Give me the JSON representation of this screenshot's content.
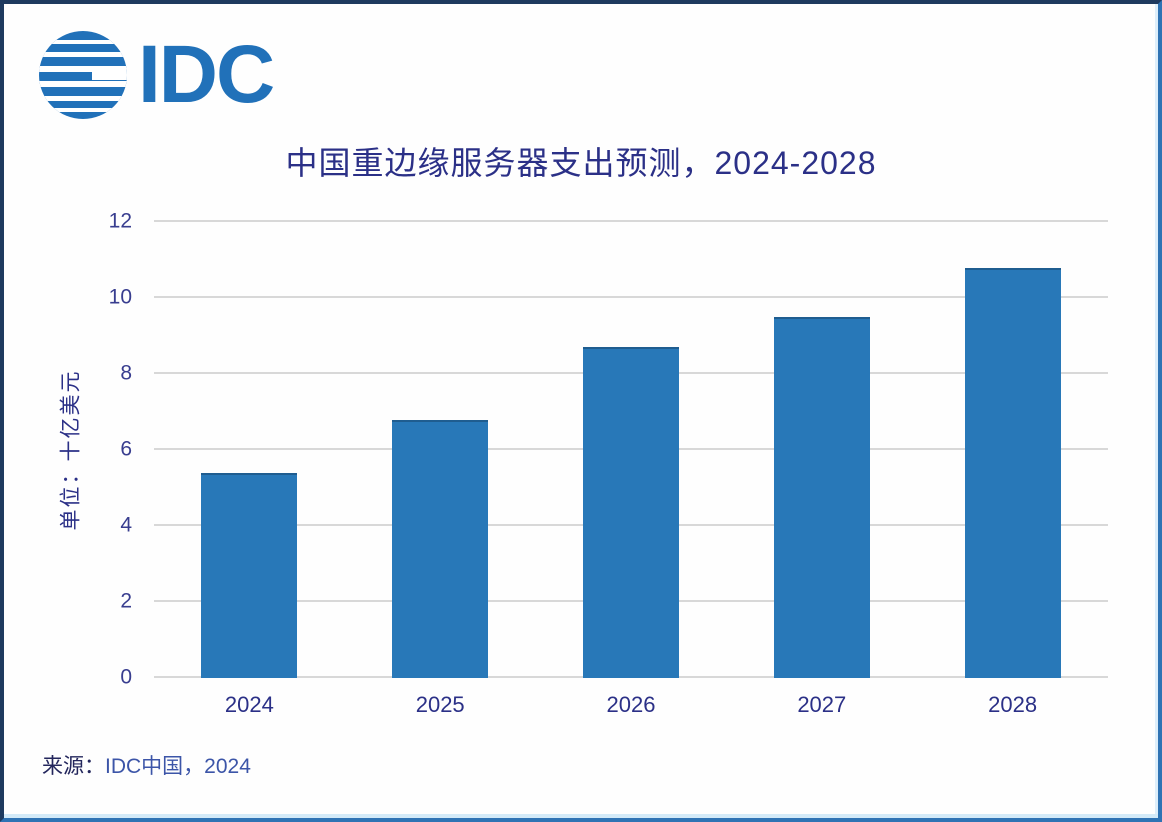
{
  "logo": {
    "text": "IDC",
    "globe_icon": "striped-globe-icon",
    "color": "#2171b9"
  },
  "header": {
    "title": "中国重边缘服务器支出预测，2024-2028"
  },
  "footer": {
    "source_label": "来源：",
    "source_value": "IDC中国，2024"
  },
  "colors": {
    "bar": "#2878b8",
    "title_text": "#2b3087",
    "tick_text": "#383d8f",
    "gridline": "#d8d8d8",
    "logo_blue": "#2171b9",
    "border_dark": "#1e3a5f",
    "border_blue": "#2f73b4"
  },
  "chart_data": {
    "type": "bar",
    "title": "中国重边缘服务器支出预测，2024-2028",
    "categories": [
      "2024",
      "2025",
      "2026",
      "2027",
      "2028"
    ],
    "values": [
      5.4,
      6.8,
      8.7,
      9.5,
      10.8
    ],
    "series_name": "重边缘服务器支出",
    "xlabel": "",
    "ylabel": "单位：十亿美元",
    "ylim": [
      0,
      12
    ],
    "ytick_step": 2,
    "yticks": [
      0,
      2,
      4,
      6,
      8,
      10,
      12
    ],
    "grid": "horizontal",
    "legend": "none",
    "bar_color": "#2878b8",
    "data_labels": "none",
    "source": "来源：IDC中国，2024"
  }
}
